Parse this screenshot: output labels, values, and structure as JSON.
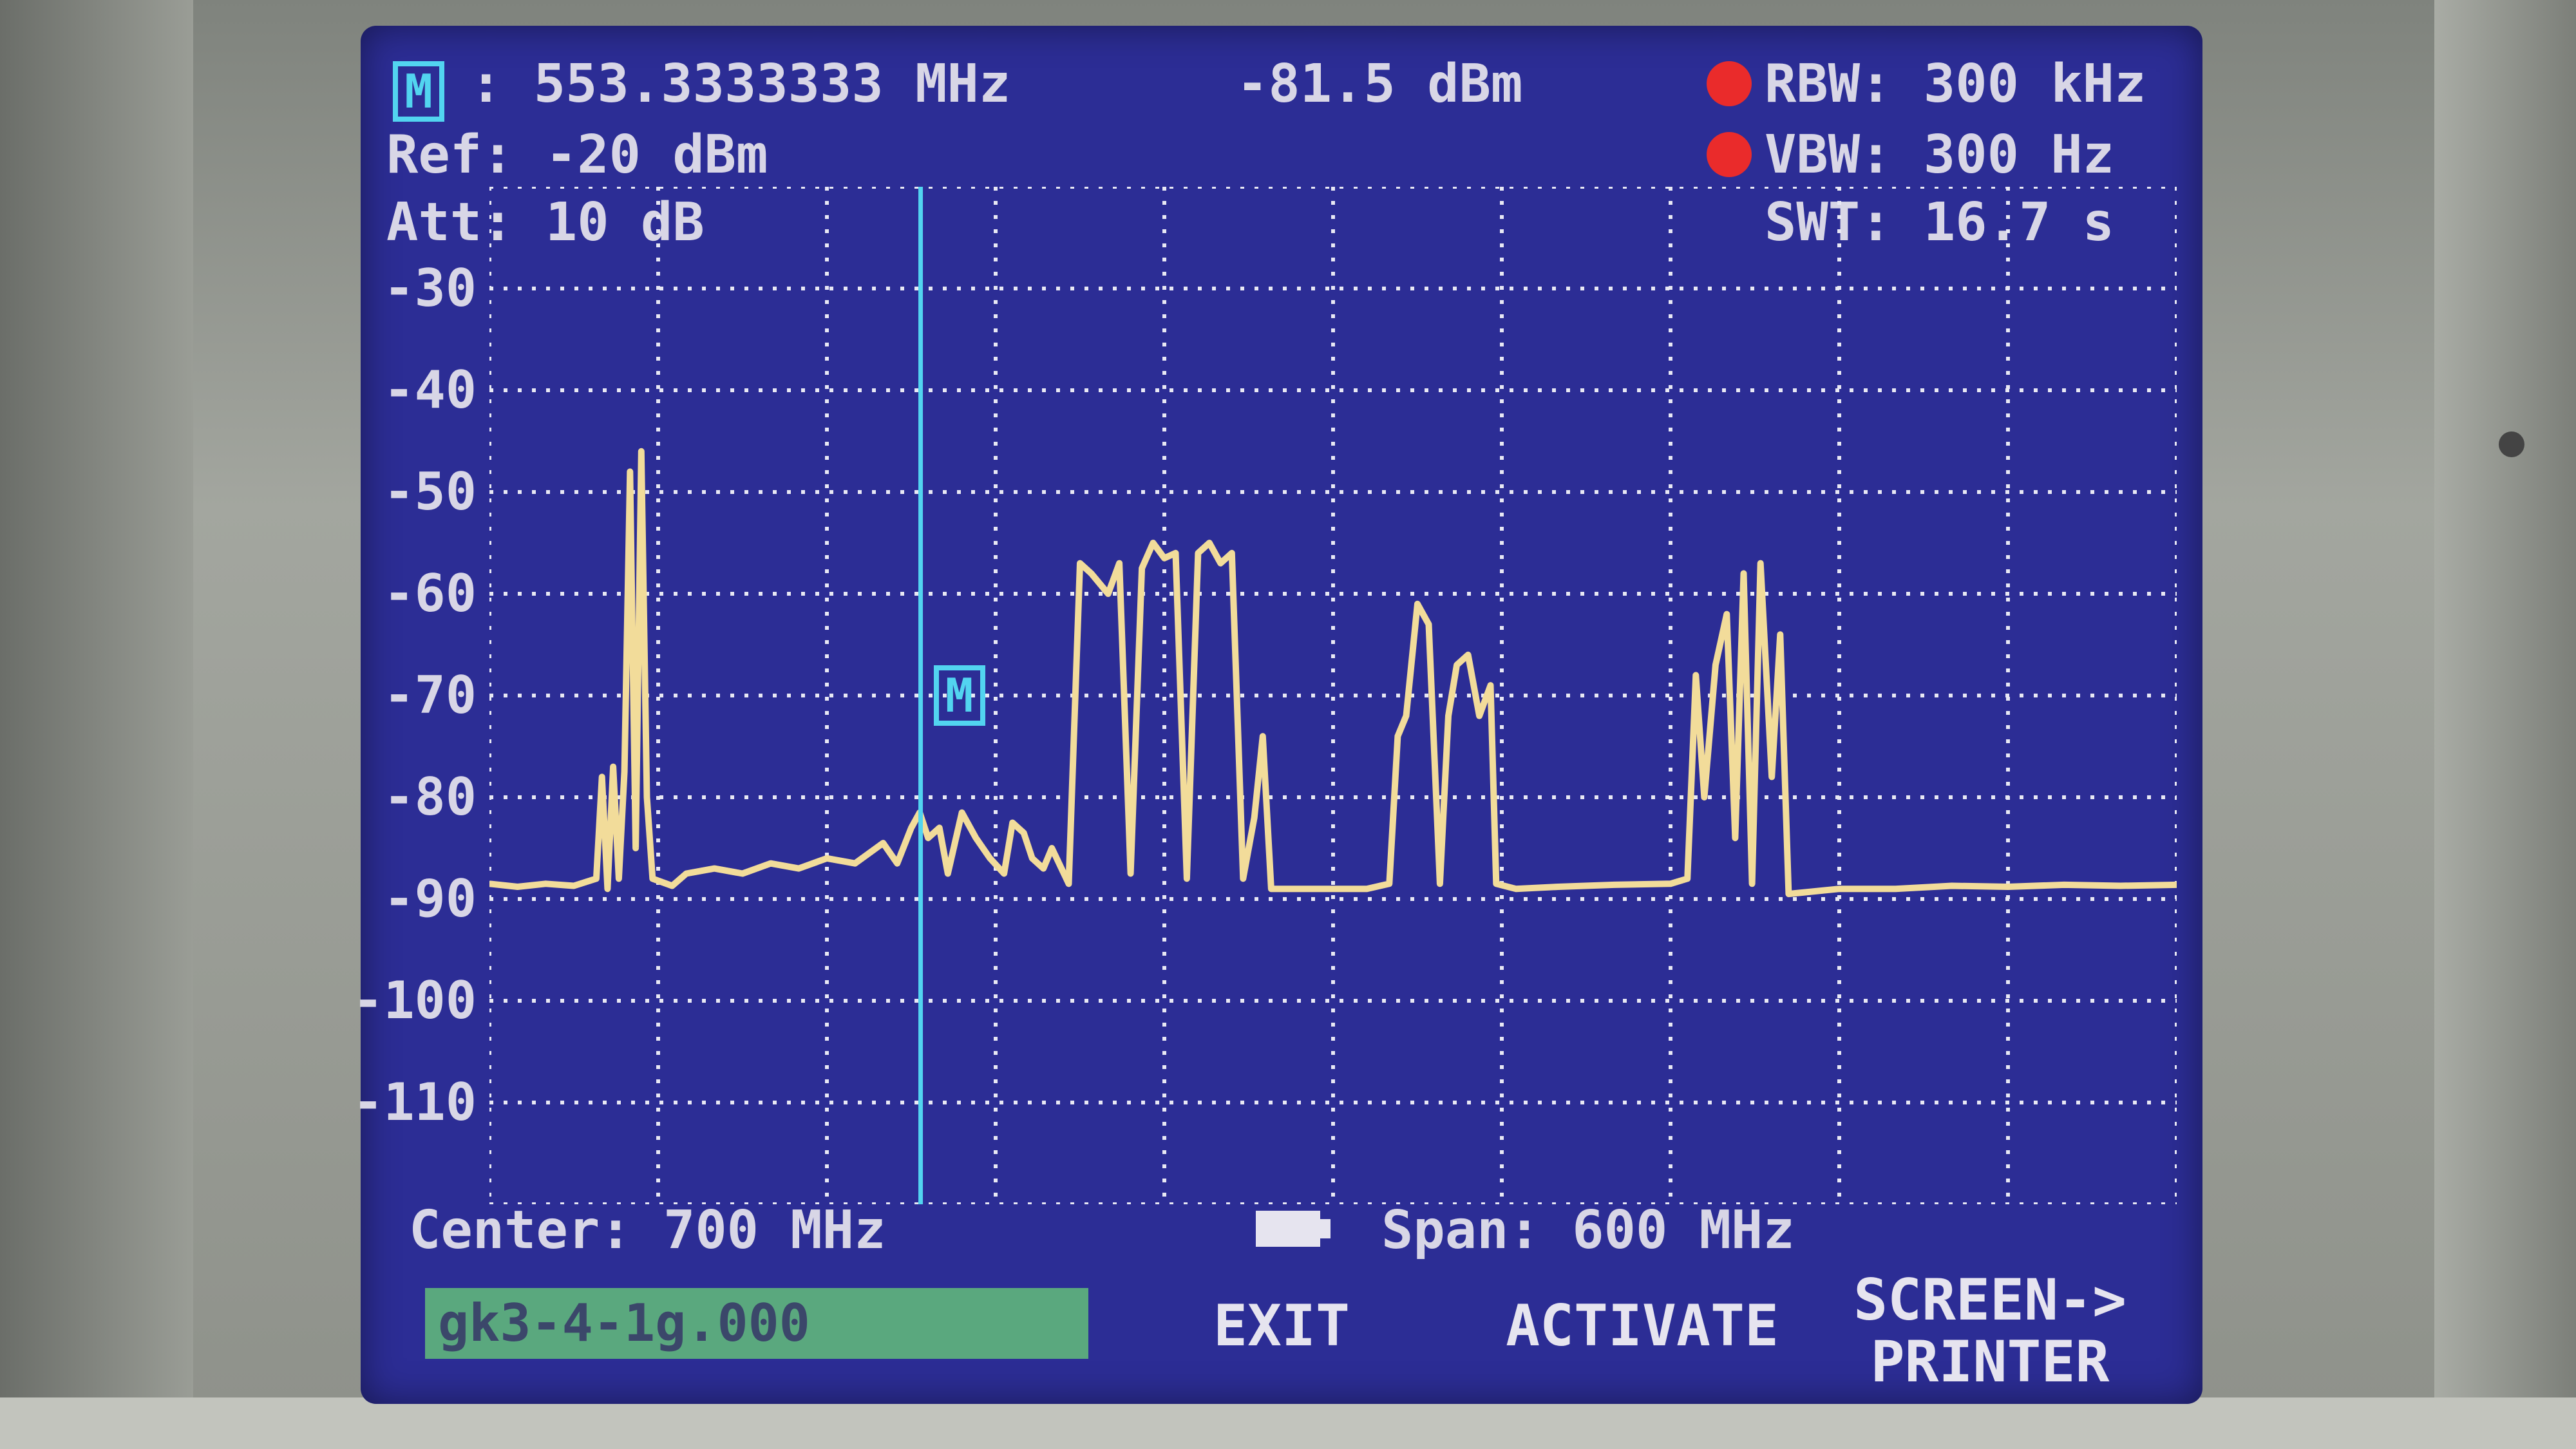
{
  "header": {
    "marker_symbol": "M",
    "marker_freq": ": 553.3333333 MHz",
    "marker_level": "-81.5 dBm",
    "ref": "Ref: -20 dBm",
    "att": "Att: 10 dB",
    "rbw": "RBW: 300 kHz",
    "vbw": "VBW: 300 Hz",
    "swt": "SWT: 16.7 s"
  },
  "footer": {
    "center": "Center: 700 MHz",
    "span": "Span: 600 MHz",
    "filename": "gk3-4-1g.000"
  },
  "softkeys": {
    "exit": "EXIT",
    "activate": "ACTIVATE",
    "screen_printer_1": "SCREEN->",
    "screen_printer_2": "PRINTER"
  },
  "colors": {
    "screen_bg": "#2c2d95",
    "trace": "#f2dc9a",
    "grid": "#e8e8f4",
    "marker": "#52d4f0",
    "indicator": "#ea2b2b",
    "filename_bg": "#5aa87e"
  },
  "chart_data": {
    "type": "line",
    "title": "",
    "xlabel": "",
    "ylabel": "",
    "x_unit": "MHz",
    "y_unit": "dBm",
    "xlim": [
      400,
      1000
    ],
    "ylim": [
      -120,
      -20
    ],
    "y_ticks": [
      -30,
      -40,
      -50,
      -60,
      -70,
      -80,
      -90,
      -100,
      -110
    ],
    "grid": true,
    "marker": {
      "x": 553.33,
      "y": -81.5
    },
    "series": [
      {
        "values": [
          [
            400,
            -88.5
          ],
          [
            410,
            -88.8
          ],
          [
            420,
            -88.5
          ],
          [
            430,
            -88.7
          ],
          [
            438,
            -88.0
          ],
          [
            440,
            -78.0
          ],
          [
            442,
            -89.0
          ],
          [
            444,
            -77.0
          ],
          [
            446,
            -88.0
          ],
          [
            448,
            -77.5
          ],
          [
            450,
            -48.0
          ],
          [
            452,
            -85.0
          ],
          [
            454,
            -46.0
          ],
          [
            456,
            -80.0
          ],
          [
            458,
            -88.0
          ],
          [
            465,
            -88.7
          ],
          [
            470,
            -87.5
          ],
          [
            480,
            -87.0
          ],
          [
            490,
            -87.5
          ],
          [
            500,
            -86.5
          ],
          [
            510,
            -87.0
          ],
          [
            520,
            -86.0
          ],
          [
            530,
            -86.5
          ],
          [
            540,
            -84.5
          ],
          [
            545,
            -86.5
          ],
          [
            550,
            -83.0
          ],
          [
            553,
            -81.5
          ],
          [
            556,
            -84.0
          ],
          [
            560,
            -83.0
          ],
          [
            563,
            -87.5
          ],
          [
            568,
            -81.5
          ],
          [
            573,
            -84.0
          ],
          [
            578,
            -86.0
          ],
          [
            583,
            -87.5
          ],
          [
            586,
            -82.5
          ],
          [
            590,
            -83.5
          ],
          [
            593,
            -86.0
          ],
          [
            597,
            -87.0
          ],
          [
            600,
            -85.0
          ],
          [
            606,
            -88.5
          ],
          [
            610,
            -57.0
          ],
          [
            614,
            -58.0
          ],
          [
            620,
            -60.0
          ],
          [
            624,
            -57.0
          ],
          [
            628,
            -87.5
          ],
          [
            632,
            -57.5
          ],
          [
            636,
            -55.0
          ],
          [
            640,
            -56.5
          ],
          [
            644,
            -56.0
          ],
          [
            648,
            -88.0
          ],
          [
            652,
            -56.0
          ],
          [
            656,
            -55.0
          ],
          [
            660,
            -57.0
          ],
          [
            664,
            -56.0
          ],
          [
            668,
            -88.0
          ],
          [
            672,
            -82.0
          ],
          [
            675,
            -74.0
          ],
          [
            678,
            -89.0
          ],
          [
            690,
            -89.0
          ],
          [
            700,
            -89.0
          ],
          [
            712,
            -89.0
          ],
          [
            720,
            -88.5
          ],
          [
            723,
            -74.0
          ],
          [
            726,
            -72.0
          ],
          [
            730,
            -61.0
          ],
          [
            734,
            -63.0
          ],
          [
            738,
            -88.5
          ],
          [
            741,
            -72.0
          ],
          [
            744,
            -67.0
          ],
          [
            748,
            -66.0
          ],
          [
            752,
            -72.0
          ],
          [
            756,
            -69.0
          ],
          [
            758,
            -88.5
          ],
          [
            765,
            -89.0
          ],
          [
            780,
            -88.8
          ],
          [
            800,
            -88.6
          ],
          [
            820,
            -88.5
          ],
          [
            826,
            -88.0
          ],
          [
            829,
            -68.0
          ],
          [
            832,
            -80.0
          ],
          [
            836,
            -67.0
          ],
          [
            840,
            -62.0
          ],
          [
            843,
            -84.0
          ],
          [
            846,
            -58.0
          ],
          [
            849,
            -88.5
          ],
          [
            852,
            -57.0
          ],
          [
            856,
            -78.0
          ],
          [
            859,
            -64.0
          ],
          [
            862,
            -89.5
          ],
          [
            880,
            -89.0
          ],
          [
            900,
            -89.0
          ],
          [
            920,
            -88.7
          ],
          [
            940,
            -88.8
          ],
          [
            960,
            -88.6
          ],
          [
            980,
            -88.7
          ],
          [
            1000,
            -88.6
          ]
        ]
      }
    ]
  }
}
